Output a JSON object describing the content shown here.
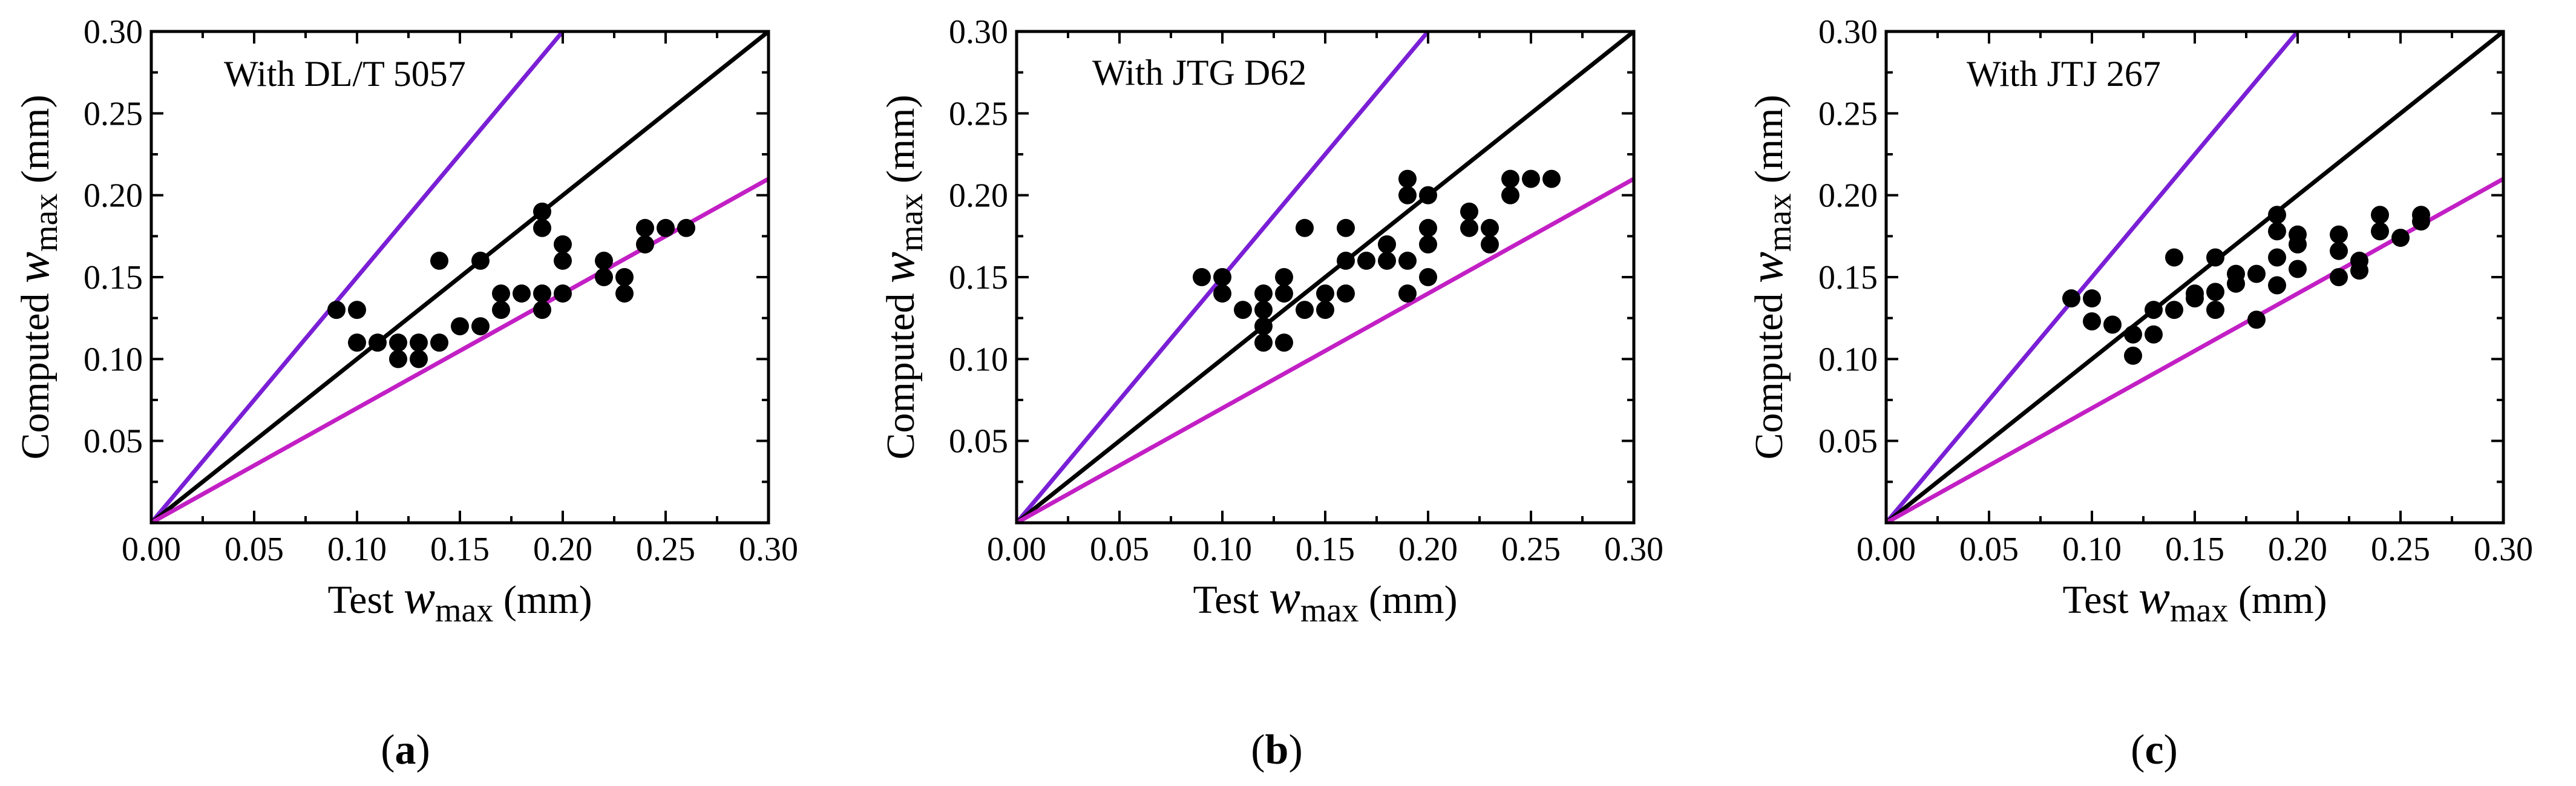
{
  "colors": {
    "identity_line": "#000000",
    "upper_line": "#7a1fd6",
    "lower_line": "#c21fc4",
    "points": "#000000",
    "axes": "#000000"
  },
  "chart_data": [
    {
      "type": "scatter",
      "annotation": "With DL/T 5057",
      "caption": {
        "open": "(",
        "letter": "a",
        "close": ")"
      },
      "xlabel": {
        "prefix": "Test ",
        "var": "w",
        "sub": "max",
        "unit": " (mm)"
      },
      "ylabel": {
        "prefix": "Computed ",
        "var": "w",
        "sub": "max",
        "unit": " (mm)"
      },
      "xlim": [
        0,
        0.3
      ],
      "ylim": [
        0,
        0.3
      ],
      "x_ticks": [
        "0.00",
        "0.05",
        "0.10",
        "0.15",
        "0.20",
        "0.25",
        "0.30"
      ],
      "y_ticks": [
        "0.05",
        "0.10",
        "0.15",
        "0.20",
        "0.25",
        "0.30"
      ],
      "reference_lines": [
        {
          "name": "upper",
          "slope": 1.5
        },
        {
          "name": "identity",
          "slope": 1.0
        },
        {
          "name": "lower",
          "slope": 0.7
        }
      ],
      "points": [
        [
          0.09,
          0.13
        ],
        [
          0.1,
          0.13
        ],
        [
          0.1,
          0.11
        ],
        [
          0.11,
          0.11
        ],
        [
          0.12,
          0.11
        ],
        [
          0.12,
          0.1
        ],
        [
          0.13,
          0.11
        ],
        [
          0.13,
          0.1
        ],
        [
          0.14,
          0.11
        ],
        [
          0.14,
          0.16
        ],
        [
          0.15,
          0.12
        ],
        [
          0.16,
          0.16
        ],
        [
          0.16,
          0.12
        ],
        [
          0.17,
          0.14
        ],
        [
          0.17,
          0.13
        ],
        [
          0.18,
          0.14
        ],
        [
          0.19,
          0.19
        ],
        [
          0.19,
          0.18
        ],
        [
          0.19,
          0.14
        ],
        [
          0.19,
          0.13
        ],
        [
          0.2,
          0.17
        ],
        [
          0.2,
          0.16
        ],
        [
          0.2,
          0.14
        ],
        [
          0.22,
          0.16
        ],
        [
          0.22,
          0.15
        ],
        [
          0.23,
          0.15
        ],
        [
          0.23,
          0.14
        ],
        [
          0.24,
          0.18
        ],
        [
          0.24,
          0.17
        ],
        [
          0.25,
          0.18
        ],
        [
          0.26,
          0.18
        ]
      ]
    },
    {
      "type": "scatter",
      "annotation": "With JTG D62",
      "caption": {
        "open": "(",
        "letter": "b",
        "close": ")"
      },
      "xlabel": {
        "prefix": "Test ",
        "var": "w",
        "sub": "max",
        "unit": " (mm)"
      },
      "ylabel": {
        "prefix": "Computed ",
        "var": "w",
        "sub": "max",
        "unit": " (mm)"
      },
      "xlim": [
        0,
        0.3
      ],
      "ylim": [
        0,
        0.3
      ],
      "x_ticks": [
        "0.00",
        "0.05",
        "0.10",
        "0.15",
        "0.20",
        "0.25",
        "0.30"
      ],
      "y_ticks": [
        "0.05",
        "0.10",
        "0.15",
        "0.20",
        "0.25",
        "0.30"
      ],
      "reference_lines": [
        {
          "name": "upper",
          "slope": 1.5
        },
        {
          "name": "identity",
          "slope": 1.0
        },
        {
          "name": "lower",
          "slope": 0.7
        }
      ],
      "points": [
        [
          0.09,
          0.15
        ],
        [
          0.1,
          0.15
        ],
        [
          0.1,
          0.14
        ],
        [
          0.11,
          0.13
        ],
        [
          0.12,
          0.14
        ],
        [
          0.12,
          0.13
        ],
        [
          0.12,
          0.12
        ],
        [
          0.12,
          0.11
        ],
        [
          0.13,
          0.15
        ],
        [
          0.13,
          0.14
        ],
        [
          0.13,
          0.11
        ],
        [
          0.14,
          0.18
        ],
        [
          0.14,
          0.13
        ],
        [
          0.15,
          0.14
        ],
        [
          0.15,
          0.13
        ],
        [
          0.16,
          0.18
        ],
        [
          0.16,
          0.16
        ],
        [
          0.16,
          0.14
        ],
        [
          0.17,
          0.16
        ],
        [
          0.18,
          0.17
        ],
        [
          0.18,
          0.16
        ],
        [
          0.19,
          0.21
        ],
        [
          0.19,
          0.2
        ],
        [
          0.19,
          0.16
        ],
        [
          0.19,
          0.14
        ],
        [
          0.2,
          0.2
        ],
        [
          0.2,
          0.18
        ],
        [
          0.2,
          0.17
        ],
        [
          0.2,
          0.15
        ],
        [
          0.22,
          0.19
        ],
        [
          0.22,
          0.18
        ],
        [
          0.23,
          0.18
        ],
        [
          0.23,
          0.17
        ],
        [
          0.24,
          0.21
        ],
        [
          0.24,
          0.2
        ],
        [
          0.25,
          0.21
        ],
        [
          0.26,
          0.21
        ]
      ]
    },
    {
      "type": "scatter",
      "annotation": "With JTJ 267",
      "caption": {
        "open": "(",
        "letter": "c",
        "close": ")"
      },
      "xlabel": {
        "prefix": "Test ",
        "var": "w",
        "sub": "max",
        "unit": " (mm)"
      },
      "ylabel": {
        "prefix": "Computed ",
        "var": "w",
        "sub": "max",
        "unit": " (mm)"
      },
      "xlim": [
        0,
        0.3
      ],
      "ylim": [
        0,
        0.3
      ],
      "x_ticks": [
        "0.00",
        "0.05",
        "0.10",
        "0.15",
        "0.20",
        "0.25",
        "0.30"
      ],
      "y_ticks": [
        "0.05",
        "0.10",
        "0.15",
        "0.20",
        "0.25",
        "0.30"
      ],
      "reference_lines": [
        {
          "name": "upper",
          "slope": 1.5
        },
        {
          "name": "identity",
          "slope": 1.0
        },
        {
          "name": "lower",
          "slope": 0.7
        }
      ],
      "points": [
        [
          0.09,
          0.137
        ],
        [
          0.1,
          0.137
        ],
        [
          0.1,
          0.123
        ],
        [
          0.11,
          0.121
        ],
        [
          0.12,
          0.115
        ],
        [
          0.12,
          0.102
        ],
        [
          0.13,
          0.13
        ],
        [
          0.13,
          0.115
        ],
        [
          0.14,
          0.162
        ],
        [
          0.14,
          0.13
        ],
        [
          0.15,
          0.14
        ],
        [
          0.15,
          0.137
        ],
        [
          0.16,
          0.162
        ],
        [
          0.16,
          0.141
        ],
        [
          0.16,
          0.13
        ],
        [
          0.17,
          0.152
        ],
        [
          0.17,
          0.146
        ],
        [
          0.18,
          0.152
        ],
        [
          0.18,
          0.124
        ],
        [
          0.19,
          0.188
        ],
        [
          0.19,
          0.178
        ],
        [
          0.19,
          0.162
        ],
        [
          0.19,
          0.145
        ],
        [
          0.2,
          0.176
        ],
        [
          0.2,
          0.17
        ],
        [
          0.2,
          0.155
        ],
        [
          0.22,
          0.176
        ],
        [
          0.22,
          0.166
        ],
        [
          0.22,
          0.15
        ],
        [
          0.23,
          0.16
        ],
        [
          0.23,
          0.154
        ],
        [
          0.24,
          0.188
        ],
        [
          0.24,
          0.178
        ],
        [
          0.25,
          0.174
        ],
        [
          0.26,
          0.188
        ],
        [
          0.26,
          0.184
        ]
      ]
    }
  ]
}
